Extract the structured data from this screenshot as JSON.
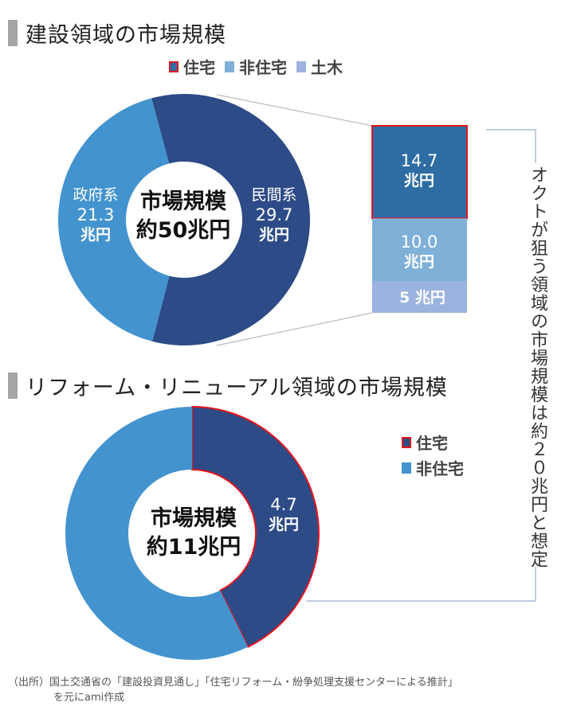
{
  "section1": {
    "title": "建設領域の市場規模"
  },
  "section2": {
    "title": "リフォーム・リニューアル領域の市場規模"
  },
  "legend1": [
    {
      "label": "住宅",
      "color": "#2e6da4",
      "border": "#e8141c"
    },
    {
      "label": "非住宅",
      "color": "#7fb0d8"
    },
    {
      "label": "土木",
      "color": "#9bb3de"
    }
  ],
  "legend2": [
    {
      "label": "住宅",
      "color": "#2d4b86",
      "border": "#e8141c"
    },
    {
      "label": "非住宅",
      "color": "#4393cf"
    }
  ],
  "chart_data": [
    {
      "type": "pie",
      "donut": true,
      "center_label": {
        "line1": "市場規模",
        "line2": "約50兆円"
      },
      "slices": [
        {
          "name": "民間系",
          "value": 29.7,
          "unit": "兆円",
          "color": "#2d4b86"
        },
        {
          "name": "政府系",
          "value": 21.3,
          "unit": "兆円",
          "color": "#4393cf"
        }
      ]
    },
    {
      "type": "bar",
      "stacked": true,
      "description_of": "民間系",
      "segments": [
        {
          "category": "住宅",
          "value": 14.7,
          "label": "14.7",
          "unit": "兆円",
          "color": "#2e6da4"
        },
        {
          "category": "非住宅",
          "value": 10.0,
          "label": "10.0",
          "unit": "兆円",
          "color": "#7fb0d8"
        },
        {
          "category": "土木",
          "value": 5,
          "label": "5 兆円",
          "color": "#9bb3de"
        }
      ]
    },
    {
      "type": "pie",
      "donut": true,
      "center_label": {
        "line1": "市場規模",
        "line2": "約11兆円"
      },
      "slices": [
        {
          "name": "住宅",
          "value": 4.7,
          "label": "4.7",
          "unit": "兆円",
          "color": "#2d4b86",
          "highlight": "#e8141c"
        },
        {
          "name": "非住宅",
          "value": 6.3,
          "color": "#4393cf"
        }
      ]
    }
  ],
  "annotation": "オクトが狙う領域の市場規模は約２０兆円と想定",
  "source": {
    "line1": "（出所）国土交通省の「建設投資見通し」「住宅リフォーム・紛争処理支援センターによる推計」",
    "line2": "を元にami作成"
  }
}
